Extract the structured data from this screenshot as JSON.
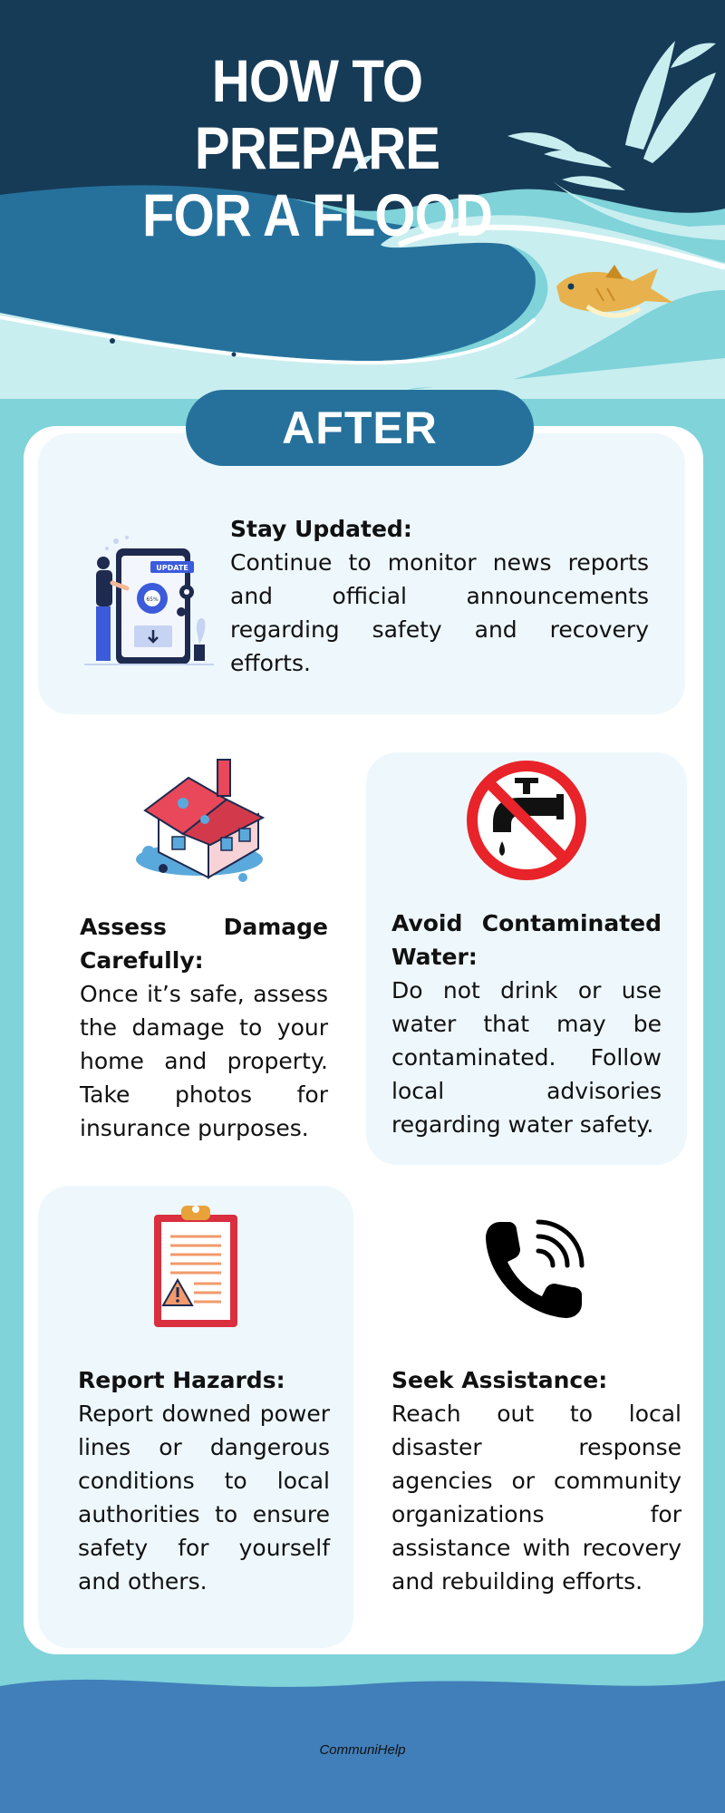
{
  "header": {
    "title_line1": "HOW TO PREPARE",
    "title_line2": "FOR A FLOOD"
  },
  "section": {
    "label": "AFTER"
  },
  "tips": [
    {
      "title": "Stay Updated:",
      "body": "Continue to monitor news reports and official announcements regarding safety and recovery efforts.",
      "icon": "phone-update-illustration",
      "icon_badge": "UPDATE",
      "icon_progress": "65%"
    },
    {
      "title": "Assess Damage Carefully:",
      "body": "Once it’s safe, assess the damage to your home and property. Take photos for insurance purposes.",
      "icon": "flooded-house-illustration"
    },
    {
      "title": "Avoid Contaminated Water:",
      "body": "Do not drink or use water that may be contaminated. Follow local advisories regarding water safety.",
      "icon": "no-tap-water-icon"
    },
    {
      "title": "Report Hazards:",
      "body": "Report downed power lines or dangerous conditions to local authorities to ensure safety for yourself and others.",
      "icon": "hazard-clipboard-icon"
    },
    {
      "title": "Seek Assistance:",
      "body": "Reach out to local disaster response agencies or community organizations for assistance with recovery and rebuilding efforts.",
      "icon": "phone-call-icon"
    }
  ],
  "footer": {
    "brand": "CommuniHelp"
  },
  "colors": {
    "background": "#7fd3d9",
    "header_dark": "#163b57",
    "header_wave": "#26719c",
    "pill": "#26719c",
    "panel": "#eef8fc",
    "footer": "#417fba",
    "fish": "#e7b24d",
    "no_sign_red": "#e8232a"
  }
}
